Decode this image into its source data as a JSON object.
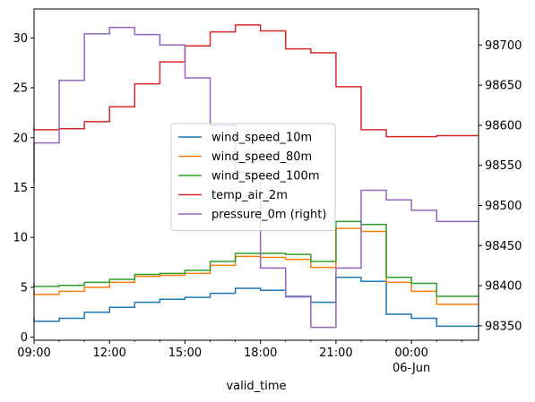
{
  "chart_data": {
    "type": "line",
    "drawstyle": "steps",
    "xlabel": "valid_time",
    "x_ticks": [
      {
        "value": "09:00",
        "label": "09:00",
        "sublabel": ""
      },
      {
        "value": "12:00",
        "label": "12:00",
        "sublabel": ""
      },
      {
        "value": "15:00",
        "label": "15:00",
        "sublabel": ""
      },
      {
        "value": "18:00",
        "label": "18:00",
        "sublabel": ""
      },
      {
        "value": "21:00",
        "label": "21:00",
        "sublabel": ""
      },
      {
        "value": "00:00",
        "label": "00:00",
        "sublabel": "06-Jun"
      }
    ],
    "x": [
      "09:00",
      "10:00",
      "11:00",
      "12:00",
      "13:00",
      "14:00",
      "15:00",
      "16:00",
      "17:00",
      "18:00",
      "19:00",
      "20:00",
      "21:00",
      "22:00",
      "23:00",
      "00:00",
      "01:00",
      "02:00"
    ],
    "xlim": [
      "09:00",
      "02:40"
    ],
    "ylim_left": [
      -0.3,
      32.9
    ],
    "yticks_left": [
      0,
      5,
      10,
      15,
      20,
      25,
      30
    ],
    "ylim_right": [
      98332,
      98745
    ],
    "yticks_right": [
      98350,
      98400,
      98450,
      98500,
      98550,
      98600,
      98650,
      98700
    ],
    "legend_position": "center",
    "series": [
      {
        "name": "wind_speed_10m",
        "axis": "left",
        "color": "#1f77b4",
        "values": [
          1.9,
          1.6,
          1.9,
          2.5,
          3.0,
          3.5,
          3.8,
          4.0,
          4.4,
          4.9,
          4.7,
          4.1,
          3.5,
          6.0,
          5.6,
          2.3,
          1.9,
          1.1
        ]
      },
      {
        "name": "wind_speed_80m",
        "axis": "left",
        "color": "#ff7f0e",
        "values": [
          4.7,
          4.3,
          4.6,
          5.0,
          5.5,
          6.1,
          6.2,
          6.4,
          7.2,
          8.1,
          8.0,
          7.8,
          7.0,
          10.9,
          10.6,
          5.5,
          4.6,
          3.3
        ]
      },
      {
        "name": "wind_speed_100m",
        "axis": "left",
        "color": "#2ca02c",
        "values": [
          5.4,
          5.1,
          5.2,
          5.5,
          5.8,
          6.3,
          6.4,
          6.7,
          7.6,
          8.4,
          8.4,
          8.3,
          7.6,
          11.6,
          11.3,
          6.0,
          5.4,
          4.1
        ]
      },
      {
        "name": "temp_air_2m",
        "axis": "left",
        "color": "#d62728",
        "values": [
          21.0,
          20.8,
          20.9,
          21.6,
          23.1,
          25.4,
          27.6,
          29.2,
          30.6,
          31.3,
          30.7,
          28.9,
          28.5,
          25.1,
          20.8,
          20.1,
          20.1,
          20.2
        ]
      },
      {
        "name": "pressure_0m (right)",
        "axis": "right",
        "color": "#9467bd",
        "values": [
          98528,
          98578,
          98656,
          98714,
          98722,
          98713,
          98700,
          98659,
          98600,
          98541,
          98422,
          98386,
          98348,
          98422,
          98519,
          98507,
          98494,
          98480
        ]
      }
    ]
  }
}
